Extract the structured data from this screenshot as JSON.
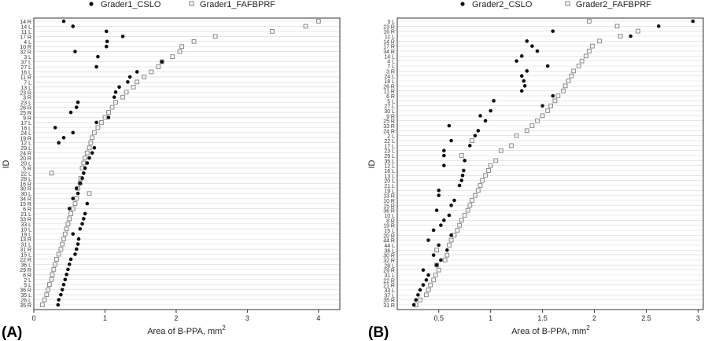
{
  "chart_data": [
    {
      "panel_label": "(A)",
      "type": "scatter",
      "xlabel": "Area of B-PPA, mm",
      "xlabel_superscript": "2",
      "ylabel": "ID",
      "xlim": [
        0,
        4.3
      ],
      "xticks": [
        0,
        1,
        2,
        3,
        4
      ],
      "grid": true,
      "legend_position": "top",
      "categories": [
        "14 R",
        "14 L",
        "11 L",
        "17 R",
        "4 L",
        "10 R",
        "32 R",
        "3 L",
        "37 L",
        "27 L",
        "16 L",
        "11 R",
        "7 L",
        "13 L",
        "23 R",
        "3 R",
        "23 L",
        "26 R",
        "25 R",
        "9 R",
        "17 L",
        "18 L",
        "24 L",
        "19 R",
        "12 L",
        "29 L",
        "24 R",
        "20 R",
        "20 L",
        "5 R",
        "22 L",
        "28 L",
        "16 R",
        "30 R",
        "30 L",
        "34 R",
        "15 R",
        "6 R",
        "21 L",
        "33 R",
        "33 L",
        "10 L",
        "19 L",
        "13 R",
        "31 L",
        "31 R",
        "15 L",
        "22 R",
        "36 L",
        "29 R",
        "8 R",
        "2 L",
        "5 L",
        "36 R",
        "35 L",
        "26 L",
        "35 R"
      ],
      "series": [
        {
          "name": "Grader1_CSLO",
          "color": "#111111",
          "marker": "filled-circle",
          "values": [
            0.42,
            0.55,
            1.02,
            1.25,
            1.03,
            1.02,
            0.58,
            0.9,
            1.8,
            0.88,
            1.45,
            1.35,
            1.32,
            1.2,
            1.15,
            1.13,
            0.62,
            0.6,
            0.52,
            1.05,
            0.88,
            0.3,
            0.55,
            0.42,
            0.35,
            0.85,
            0.82,
            0.78,
            0.75,
            0.72,
            0.7,
            0.68,
            0.65,
            0.6,
            0.62,
            0.55,
            0.75,
            0.5,
            0.72,
            0.7,
            0.68,
            0.65,
            0.55,
            0.63,
            0.62,
            0.6,
            0.58,
            0.52,
            0.5,
            0.48,
            0.46,
            0.44,
            0.42,
            0.4,
            0.38,
            0.35,
            0.34
          ]
        },
        {
          "name": "Grader1_FAFBPRF",
          "color": "#888888",
          "marker": "open-square",
          "values": [
            4.0,
            3.82,
            3.35,
            2.55,
            2.25,
            2.08,
            2.05,
            1.95,
            1.8,
            1.75,
            1.65,
            1.55,
            1.45,
            1.4,
            1.3,
            1.25,
            1.15,
            1.1,
            1.05,
            1.0,
            0.95,
            0.9,
            0.85,
            0.82,
            0.8,
            0.78,
            0.75,
            0.72,
            0.7,
            0.68,
            0.25,
            0.66,
            0.65,
            0.62,
            0.78,
            0.6,
            0.58,
            0.55,
            0.52,
            0.5,
            0.48,
            0.46,
            0.44,
            0.42,
            0.4,
            0.38,
            0.35,
            0.32,
            0.3,
            0.28,
            0.26,
            0.25,
            0.22,
            0.2,
            0.18,
            0.15,
            0.12
          ]
        }
      ]
    },
    {
      "panel_label": "(B)",
      "type": "scatter",
      "xlabel": "Area of B-PPA, mm",
      "xlabel_superscript": "2",
      "ylabel": "ID",
      "xlim": [
        0.1,
        3.05
      ],
      "xticks": [
        0.5,
        1.0,
        1.5,
        2.0,
        2.5,
        3.0
      ],
      "grid": true,
      "legend_position": "top",
      "categories": [
        "3 L",
        "23 R",
        "16 R",
        "11 L",
        "14 R",
        "17 R",
        "34 R",
        "14 L",
        "4 L",
        "7 L",
        "3 R",
        "24 L",
        "18 L",
        "26 R",
        "11 R",
        "6 R",
        "5 L",
        "27 L",
        "30 L",
        "9 R",
        "25 R",
        "33 R",
        "24 R",
        "2 L",
        "22 L",
        "17 L",
        "23 L",
        "29 L",
        "35 L",
        "12 L",
        "16 L",
        "13 L",
        "20 L",
        "21 L",
        "19 L",
        "13 R",
        "10 R",
        "15 R",
        "36 R",
        "10 L",
        "8 R",
        "19 R",
        "15 L",
        "20 R",
        "44 R",
        "44 L",
        "36 L",
        "30 R",
        "32 R",
        "28 L",
        "29 R",
        "31 L",
        "22 R",
        "21 R",
        "33 L",
        "37 L",
        "35 R",
        "31 R"
      ],
      "series": [
        {
          "name": "Grader2_CSLO",
          "color": "#111111",
          "marker": "filled-circle",
          "values": [
            2.95,
            2.62,
            1.6,
            2.35,
            1.35,
            1.4,
            1.45,
            1.3,
            1.25,
            1.55,
            1.35,
            1.3,
            1.32,
            1.33,
            1.3,
            1.6,
            1.03,
            1.5,
            1.0,
            0.9,
            0.95,
            0.6,
            0.88,
            0.85,
            0.62,
            0.8,
            0.55,
            0.55,
            0.75,
            0.55,
            0.74,
            0.73,
            0.72,
            0.7,
            0.5,
            0.5,
            0.65,
            0.62,
            0.48,
            0.6,
            0.55,
            0.52,
            0.45,
            0.62,
            0.4,
            0.5,
            0.58,
            0.45,
            0.52,
            0.48,
            0.35,
            0.4,
            0.38,
            0.35,
            0.32,
            0.3,
            0.28,
            0.26
          ]
        },
        {
          "name": "Grader2_FAFBPRF",
          "color": "#888888",
          "marker": "open-square",
          "values": [
            1.95,
            2.22,
            2.42,
            2.25,
            2.05,
            1.98,
            1.95,
            1.92,
            1.88,
            1.85,
            1.8,
            1.78,
            1.75,
            1.72,
            1.7,
            1.65,
            1.62,
            1.58,
            1.55,
            1.5,
            1.45,
            1.4,
            1.35,
            1.25,
            0.82,
            1.2,
            1.1,
            0.72,
            1.05,
            1.0,
            0.98,
            0.95,
            0.92,
            0.9,
            0.88,
            0.85,
            0.82,
            0.8,
            0.78,
            0.75,
            0.72,
            0.7,
            0.68,
            0.65,
            0.62,
            0.6,
            0.48,
            0.58,
            0.56,
            0.48,
            0.5,
            0.47,
            0.45,
            0.42,
            0.4,
            0.38,
            0.32,
            0.28
          ]
        }
      ]
    }
  ]
}
